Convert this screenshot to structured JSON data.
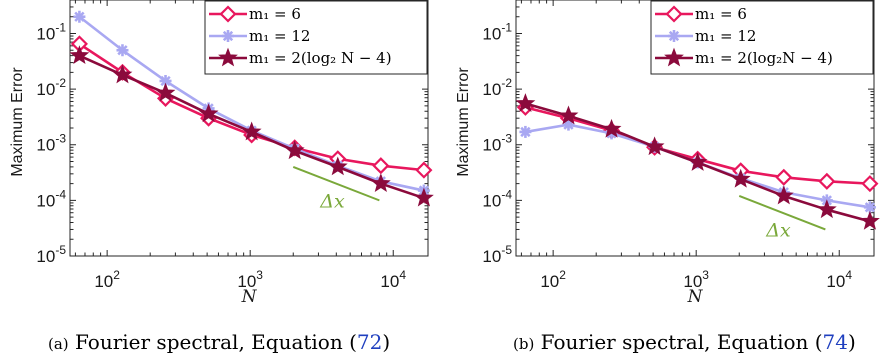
{
  "chart_data": [
    {
      "type": "line",
      "panel_id": "a",
      "caption_tag": "(a)",
      "caption_text": "Fourier spectral, Equation (",
      "caption_ref": "72",
      "caption_close": ")",
      "xlabel": "N",
      "ylabel": "Maximum Error",
      "x_scale": "log",
      "y_scale": "log",
      "xlim": [
        55,
        17500
      ],
      "ylim": [
        1e-05,
        0.4
      ],
      "x_ticks": [
        {
          "base": "10",
          "exp": "2",
          "value": 100
        },
        {
          "base": "10",
          "exp": "3",
          "value": 1000
        },
        {
          "base": "10",
          "exp": "4",
          "value": 10000
        }
      ],
      "y_ticks": [
        {
          "base": "10",
          "exp": "-5",
          "value": 1e-05
        },
        {
          "base": "10",
          "exp": "-4",
          "value": 0.0001
        },
        {
          "base": "10",
          "exp": "-3",
          "value": 0.001
        },
        {
          "base": "10",
          "exp": "-2",
          "value": 0.01
        },
        {
          "base": "10",
          "exp": "-1",
          "value": 0.1
        }
      ],
      "legend_position": "top-right",
      "series": [
        {
          "name": "m₁ = 6",
          "color": "#e8175d",
          "marker": "diamond",
          "x": [
            64,
            128,
            256,
            512,
            1024,
            2048,
            4096,
            8192,
            16384
          ],
          "y": [
            0.065,
            0.02,
            0.0068,
            0.003,
            0.0015,
            0.00088,
            0.00056,
            0.00042,
            0.00035
          ]
        },
        {
          "name": "m₁ = 12",
          "color": "#a9a8f2",
          "marker": "asterisk",
          "x": [
            64,
            128,
            256,
            512,
            1024,
            2048,
            4096,
            8192,
            16384
          ],
          "y": [
            0.2,
            0.05,
            0.014,
            0.0045,
            0.0018,
            0.00085,
            0.00042,
            0.00022,
            0.00015
          ]
        },
        {
          "name": "m₁ = 2(log₂ N − 4)",
          "color": "#8b0a3c",
          "marker": "star",
          "x": [
            64,
            128,
            256,
            512,
            1024,
            2048,
            4096,
            8192,
            16384
          ],
          "y": [
            0.04,
            0.018,
            0.0085,
            0.0036,
            0.0017,
            0.00078,
            0.0004,
            0.0002,
            0.00011
          ]
        }
      ],
      "annotation": {
        "text": "Δx",
        "color": "#7aa83a",
        "x1": 2000,
        "y1": 0.0004,
        "x2": 8000,
        "y2": 0.0001
      }
    },
    {
      "type": "line",
      "panel_id": "b",
      "caption_tag": "(b)",
      "caption_text": "Fourier spectral, Equation (",
      "caption_ref": "74",
      "caption_close": ")",
      "xlabel": "N",
      "ylabel": "Maximum Error",
      "x_scale": "log",
      "y_scale": "log",
      "xlim": [
        55,
        17500
      ],
      "ylim": [
        1e-05,
        0.4
      ],
      "x_ticks": [
        {
          "base": "10",
          "exp": "2",
          "value": 100
        },
        {
          "base": "10",
          "exp": "3",
          "value": 1000
        },
        {
          "base": "10",
          "exp": "4",
          "value": 10000
        }
      ],
      "y_ticks": [
        {
          "base": "10",
          "exp": "-5",
          "value": 1e-05
        },
        {
          "base": "10",
          "exp": "-4",
          "value": 0.0001
        },
        {
          "base": "10",
          "exp": "-3",
          "value": 0.001
        },
        {
          "base": "10",
          "exp": "-2",
          "value": 0.01
        },
        {
          "base": "10",
          "exp": "-1",
          "value": 0.1
        }
      ],
      "legend_position": "top-right",
      "series": [
        {
          "name": "m₁ = 6",
          "color": "#e8175d",
          "marker": "diamond",
          "x": [
            64,
            128,
            256,
            512,
            1024,
            2048,
            4096,
            8192,
            16384
          ],
          "y": [
            0.0047,
            0.003,
            0.0018,
            0.0009,
            0.00055,
            0.00034,
            0.00026,
            0.00022,
            0.0002
          ]
        },
        {
          "name": "m₁ = 12",
          "color": "#a9a8f2",
          "marker": "asterisk",
          "x": [
            64,
            128,
            256,
            512,
            1024,
            2048,
            4096,
            8192,
            16384
          ],
          "y": [
            0.0017,
            0.0023,
            0.0016,
            0.00092,
            0.00048,
            0.00025,
            0.00014,
            0.0001,
            7.5e-05
          ]
        },
        {
          "name": "m₁ = 2(log₂N − 4)",
          "color": "#8b0a3c",
          "marker": "star",
          "x": [
            64,
            128,
            256,
            512,
            1024,
            2048,
            4096,
            8192,
            16384
          ],
          "y": [
            0.0055,
            0.0033,
            0.0019,
            0.00092,
            0.00048,
            0.00024,
            0.00012,
            6.8e-05,
            4.2e-05
          ]
        }
      ],
      "annotation": {
        "text": "Δx",
        "color": "#7aa83a",
        "x1": 2000,
        "y1": 0.00012,
        "x2": 8000,
        "y2": 3e-05
      }
    }
  ]
}
